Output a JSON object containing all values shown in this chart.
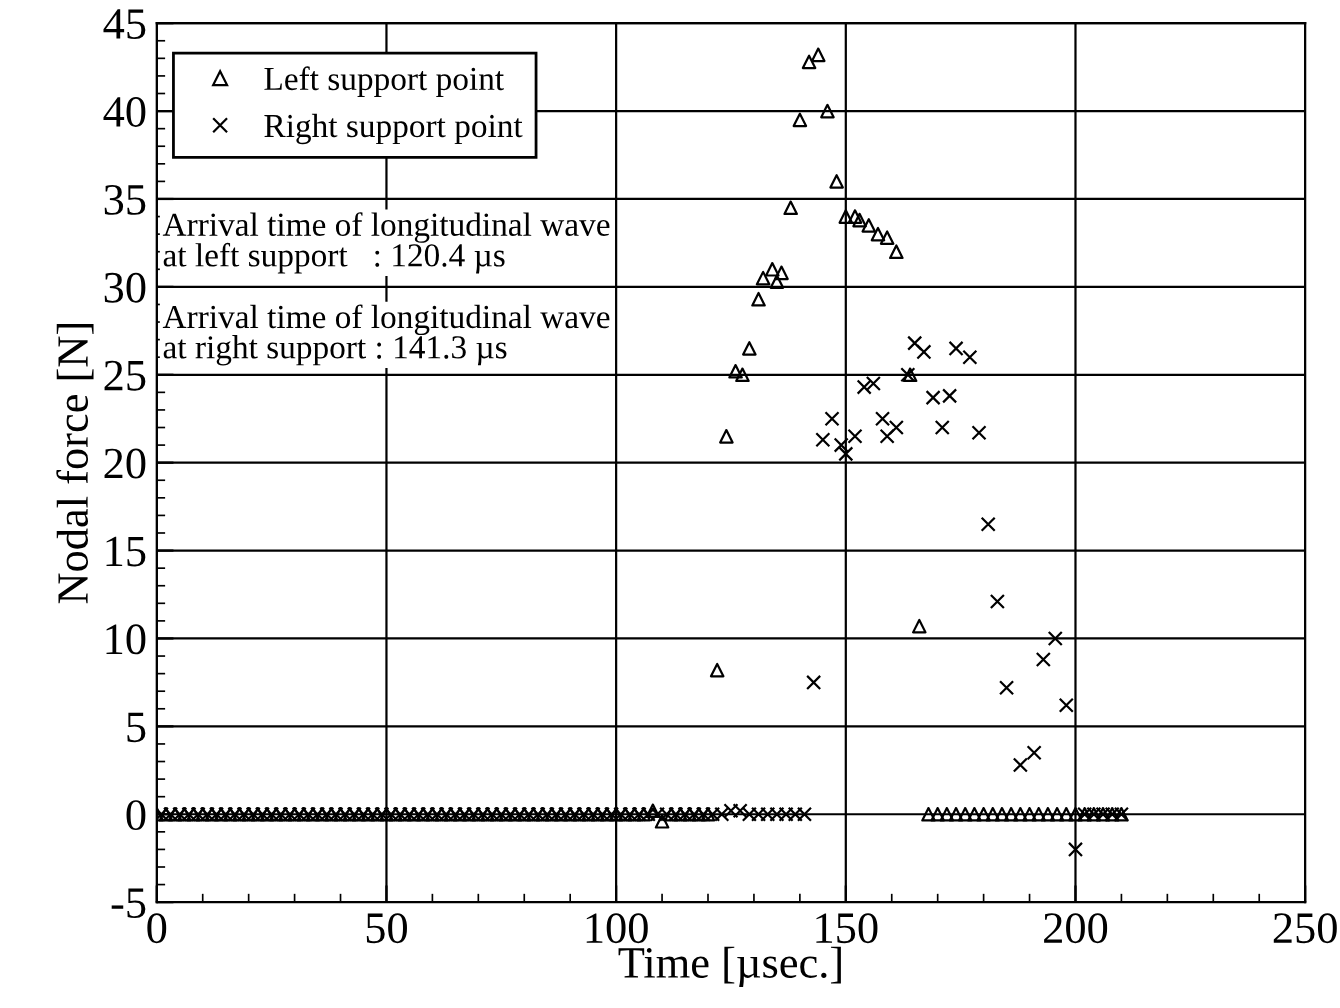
{
  "chart_data": {
    "type": "scatter",
    "xlabel": "Time [µsec.]",
    "ylabel": "Nodal force [N]",
    "xlim": [
      0,
      250
    ],
    "ylim": [
      -5,
      45
    ],
    "xticks": [
      0,
      50,
      100,
      150,
      200,
      250
    ],
    "yticks": [
      -5,
      0,
      5,
      10,
      15,
      20,
      25,
      30,
      35,
      40,
      45
    ],
    "grid": true,
    "legend": "top left",
    "annotations": [
      "Arrival time of longitudinal wave\nat left support   : 120.4 µs",
      "Arrival time of longitudinal wave\nat right support : 141.3 µs"
    ],
    "series": [
      {
        "name": "Left support point",
        "color": "#000000",
        "marker": "triangle",
        "x": [
          0,
          2,
          4,
          6,
          8,
          10,
          12,
          14,
          16,
          18,
          20,
          22,
          24,
          26,
          28,
          30,
          32,
          34,
          36,
          38,
          40,
          42,
          44,
          46,
          48,
          50,
          52,
          54,
          56,
          58,
          60,
          62,
          64,
          66,
          68,
          70,
          72,
          74,
          76,
          78,
          80,
          82,
          84,
          86,
          88,
          90,
          92,
          94,
          96,
          98,
          100,
          102,
          104,
          106,
          108,
          110,
          112,
          114,
          116,
          118,
          120,
          122,
          124,
          126,
          127.5,
          129,
          131,
          132,
          134,
          135,
          136,
          138,
          140,
          142,
          144,
          146,
          148,
          150,
          152,
          153,
          155,
          157,
          159,
          161,
          164,
          166,
          168,
          170,
          172,
          174,
          176,
          178,
          180,
          182,
          184,
          186,
          188,
          190,
          192,
          194,
          196,
          198,
          200,
          202,
          204,
          206,
          208,
          210
        ],
        "values": [
          0,
          0,
          0,
          0,
          0,
          0,
          0,
          0,
          0,
          0,
          0,
          0,
          0,
          0,
          0,
          0,
          0,
          0,
          0,
          0,
          0,
          0,
          0,
          0,
          0,
          0,
          0,
          0,
          0,
          0,
          0,
          0,
          0,
          0,
          0,
          0,
          0,
          0,
          0,
          0,
          0,
          0,
          0,
          0,
          0,
          0,
          0,
          0,
          0,
          0,
          0,
          0,
          0,
          0,
          0.2,
          -0.4,
          0,
          0,
          0,
          0,
          0,
          8.2,
          21.5,
          25.2,
          25,
          26.5,
          29.3,
          30.5,
          31,
          30.3,
          30.8,
          34.5,
          39.5,
          42.8,
          43.2,
          40,
          36,
          34,
          34,
          33.8,
          33.5,
          33,
          32.8,
          32,
          25,
          10.7,
          0,
          0,
          0,
          0,
          0,
          0,
          0,
          0,
          0,
          0,
          0,
          0,
          0,
          0,
          0,
          0,
          0,
          0,
          0,
          0,
          0,
          0
        ]
      },
      {
        "name": "Right support point",
        "color": "#000000",
        "marker": "cross",
        "x": [
          1,
          3,
          5,
          7,
          9,
          11,
          13,
          15,
          17,
          19,
          21,
          23,
          25,
          27,
          29,
          31,
          33,
          35,
          37,
          39,
          41,
          43,
          45,
          47,
          49,
          51,
          53,
          55,
          57,
          59,
          61,
          63,
          65,
          67,
          69,
          71,
          73,
          75,
          77,
          79,
          81,
          83,
          85,
          87,
          89,
          91,
          93,
          95,
          97,
          99,
          101,
          103,
          105,
          107,
          109,
          111,
          113,
          115,
          117,
          119,
          121,
          123,
          125,
          127,
          129,
          131,
          133,
          135,
          137,
          139,
          141,
          143,
          145,
          147,
          149,
          150,
          152,
          154,
          156,
          158,
          159,
          161,
          163.5,
          165,
          167,
          169,
          171,
          172.6,
          174,
          177,
          179,
          181,
          183,
          185,
          188,
          191,
          193,
          195.6,
          198,
          200,
          202,
          204,
          206,
          208,
          210
        ],
        "values": [
          0,
          0,
          0,
          0,
          0,
          0,
          0,
          0,
          0,
          0,
          0,
          0,
          0,
          0,
          0,
          0,
          0,
          0,
          0,
          0,
          0,
          0,
          0,
          0,
          0,
          0,
          0,
          0,
          0,
          0,
          0,
          0,
          0,
          0,
          0,
          0,
          0,
          0,
          0,
          0,
          0,
          0,
          0,
          0,
          0,
          0,
          0,
          0,
          0,
          0,
          0,
          0,
          0,
          0,
          0,
          0,
          0,
          0,
          0,
          0,
          0,
          0,
          0.2,
          0.2,
          0,
          0,
          0,
          0,
          0,
          0,
          0,
          7.5,
          21.3,
          22.5,
          21,
          20.5,
          21.5,
          24.3,
          24.5,
          22.5,
          21.5,
          22,
          25,
          26.8,
          26.3,
          23.7,
          22,
          23.8,
          26.5,
          26,
          21.7,
          16.5,
          12.1,
          7.2,
          2.8,
          3.5,
          8.8,
          10,
          6.2,
          -2,
          0,
          0,
          0,
          0,
          0
        ]
      }
    ]
  }
}
